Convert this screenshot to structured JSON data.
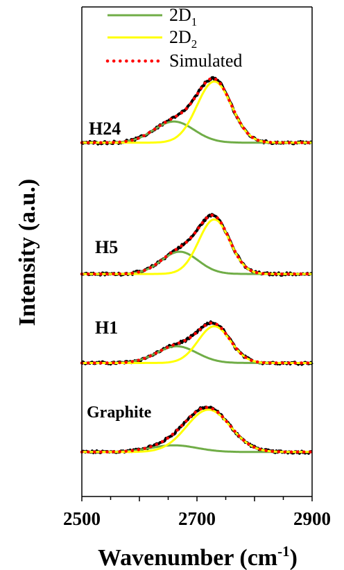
{
  "chart_data": {
    "type": "line",
    "title": "",
    "xlabel": "Wavenumber (cm",
    "xlabel_sup": "-1",
    "xlabel_close": ")",
    "ylabel": "Intensity (a.u.)",
    "xlim": [
      2500,
      2900
    ],
    "xticks": [
      2500,
      2700,
      2900
    ],
    "xtick_labels": [
      "2500",
      "2700",
      "2900"
    ],
    "ylim": [
      0,
      4.4
    ],
    "grid": false,
    "legend_position": "top",
    "legend": [
      {
        "label": "2D",
        "sub": "1",
        "color": "#70AD47",
        "style": "solid"
      },
      {
        "label": "2D",
        "sub": "2",
        "color": "#FFFF00",
        "style": "solid"
      },
      {
        "label": "Simulated",
        "sub": "",
        "color": "#FF0000",
        "style": "dotted"
      }
    ],
    "colors": {
      "measured": "#000000",
      "d1": "#70AD47",
      "d2": "#FFFF00",
      "simulated": "#FF0000"
    },
    "series": [
      {
        "name": "Graphite",
        "offset": 0.4,
        "d1": {
          "center": 2660,
          "width": 40,
          "amplitude": 0.06
        },
        "d2": {
          "center": 2720,
          "width": 38,
          "amplitude": 0.38
        },
        "peak_intensity": 0.39
      },
      {
        "name": "H1",
        "offset": 1.2,
        "d1": {
          "center": 2665,
          "width": 35,
          "amplitude": 0.15
        },
        "d2": {
          "center": 2730,
          "width": 28,
          "amplitude": 0.33
        },
        "peak_intensity": 0.34
      },
      {
        "name": "H5",
        "offset": 2.0,
        "d1": {
          "center": 2670,
          "width": 32,
          "amplitude": 0.2
        },
        "d2": {
          "center": 2730,
          "width": 27,
          "amplitude": 0.49
        },
        "peak_intensity": 0.49
      },
      {
        "name": "H24",
        "offset": 3.18,
        "d1": {
          "center": 2660,
          "width": 35,
          "amplitude": 0.19
        },
        "d2": {
          "center": 2730,
          "width": 30,
          "amplitude": 0.55
        },
        "peak_intensity": 0.58
      }
    ]
  }
}
